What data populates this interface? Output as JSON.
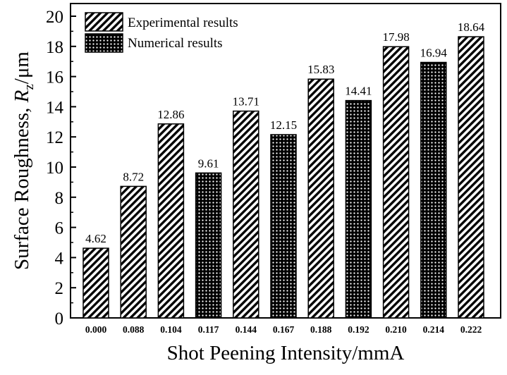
{
  "chart_data": {
    "type": "bar",
    "xlabel": "Shot Peening Intensity/mmA",
    "ylabel_main": "Surface Roughness, ",
    "ylabel_var": "R",
    "ylabel_sub": "z",
    "ylabel_unit": "/μm",
    "ylim": [
      0,
      20
    ],
    "yticks": [
      "0",
      "2",
      "4",
      "6",
      "8",
      "10",
      "12",
      "14",
      "16",
      "18",
      "20"
    ],
    "grid": false,
    "legend_position": "top-left",
    "categories": [
      "0.000",
      "0.088",
      "0.104",
      "0.117",
      "0.144",
      "0.167",
      "0.188",
      "0.192",
      "0.210",
      "0.214",
      "0.222"
    ],
    "series": [
      {
        "name": "Experimental results",
        "pattern": "diagonal-hatch",
        "values": [
          4.62,
          8.72,
          12.86,
          null,
          13.71,
          null,
          15.83,
          null,
          17.98,
          null,
          18.64
        ]
      },
      {
        "name": "Numerical results",
        "pattern": "cross-hatch",
        "values": [
          null,
          null,
          null,
          9.61,
          null,
          12.15,
          null,
          14.41,
          null,
          16.94,
          null
        ]
      }
    ],
    "data_labels": [
      "4.62",
      "8.72",
      "12.86",
      "9.61",
      "13.71",
      "12.15",
      "15.83",
      "14.41",
      "17.98",
      "16.94",
      "18.64"
    ]
  }
}
